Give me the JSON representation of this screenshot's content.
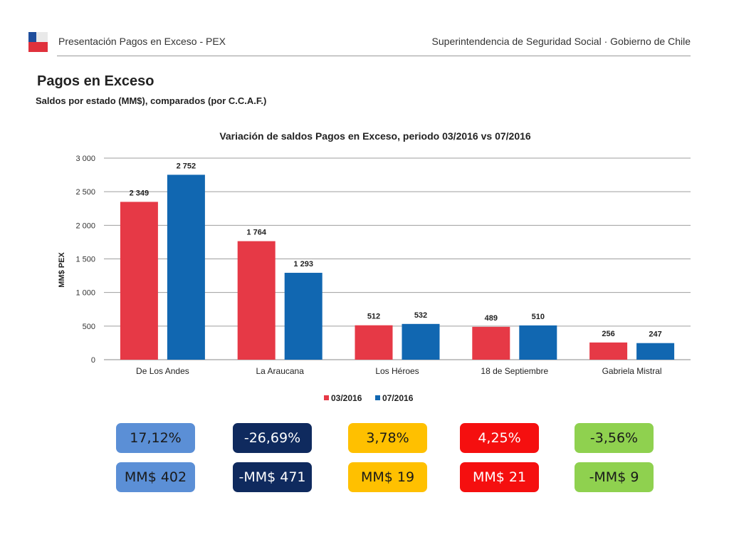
{
  "header": {
    "left_text": "Presentación Pagos en Exceso - PEX",
    "right_text": "Superintendencia de Seguridad Social · Gobierno de Chile"
  },
  "page": {
    "title": "Pagos en Exceso",
    "subtitle": "Saldos por estado (MM$), comparados (por C.C.A.F.)"
  },
  "chart_data": {
    "type": "bar",
    "title": "Variación de saldos Pagos en Exceso, periodo 03/2016 vs 07/2016",
    "xlabel": "",
    "ylabel": "MM$ PEX",
    "ylim": [
      0,
      3000
    ],
    "yticks": [
      0,
      500,
      1000,
      1500,
      2000,
      2500,
      3000
    ],
    "ytick_labels": [
      "0",
      "500",
      "1 000",
      "1 500",
      "2 000",
      "2 500",
      "3 000"
    ],
    "grid": true,
    "legend_position": "bottom",
    "categories": [
      "De Los Andes",
      "La Araucana",
      "Los Héroes",
      "18 de Septiembre",
      "Gabriela Mistral"
    ],
    "series": [
      {
        "name": "03/2016",
        "color": "#e63946",
        "values": [
          2349,
          1764,
          512,
          489,
          256
        ],
        "labels": [
          "2 349",
          "1 764",
          "512",
          "489",
          "256"
        ]
      },
      {
        "name": "07/2016",
        "color": "#1167b1",
        "values": [
          2752,
          1293,
          532,
          510,
          247
        ],
        "labels": [
          "2 752",
          "1 293",
          "532",
          "510",
          "247"
        ]
      }
    ]
  },
  "summary_boxes": [
    {
      "name": "de-los-andes",
      "percent": "17,12%",
      "amount": "MM$ 402",
      "bg": "#5b8fd6",
      "fg": "#1a1a1a"
    },
    {
      "name": "la-araucana",
      "percent": "-26,69%",
      "amount": "-MM$ 471",
      "bg": "#0f2a5e",
      "fg": "#ffffff"
    },
    {
      "name": "los-heroes",
      "percent": "3,78%",
      "amount": "MM$ 19",
      "bg": "#ffc000",
      "fg": "#1a1a1a"
    },
    {
      "name": "18-de-septiembre",
      "percent": "4,25%",
      "amount": "MM$ 21",
      "bg": "#f50f0f",
      "fg": "#ffffff"
    },
    {
      "name": "gabriela-mistral",
      "percent": "-3,56%",
      "amount": "-MM$ 9",
      "bg": "#8fd14f",
      "fg": "#1a1a1a"
    }
  ]
}
